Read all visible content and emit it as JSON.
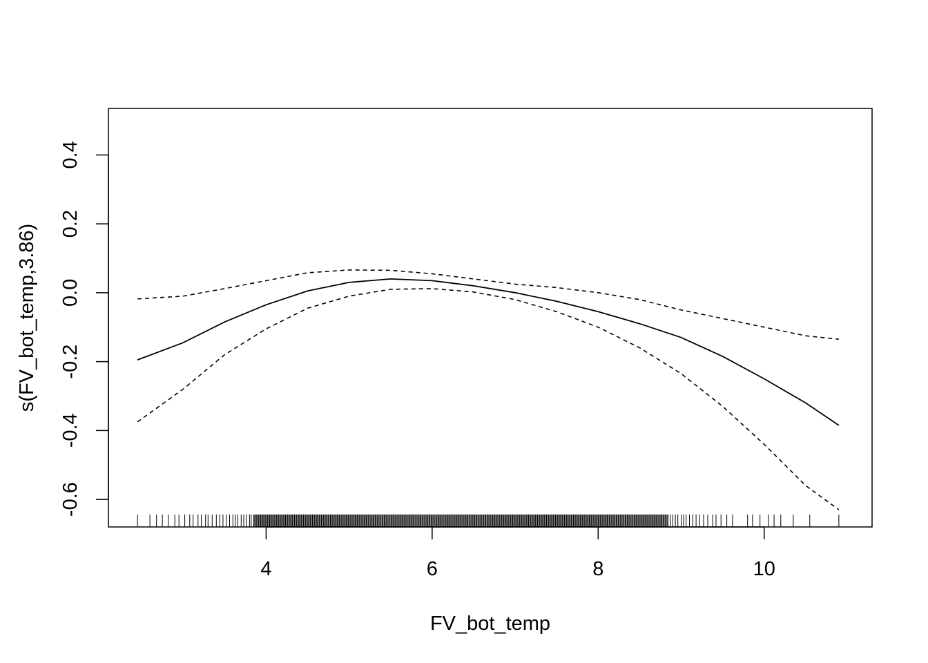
{
  "chart_data": {
    "type": "line",
    "title": "",
    "xlabel": "FV_bot_temp",
    "ylabel": "s(FV_bot_temp,3.86)",
    "xlim": [
      2.1,
      11.3
    ],
    "ylim": [
      -0.68,
      0.535
    ],
    "x_ticks": [
      4,
      6,
      8,
      10
    ],
    "x_tick_labels": [
      "4",
      "6",
      "8",
      "10"
    ],
    "y_ticks": [
      -0.6,
      -0.4,
      -0.2,
      0.0,
      0.2,
      0.4
    ],
    "y_tick_labels": [
      "-0.6",
      "-0.4",
      "-0.2",
      "0.0",
      "0.2",
      "0.4"
    ],
    "grid": false,
    "series": [
      {
        "style": "solid",
        "x": [
          2.45,
          3.0,
          3.5,
          4.0,
          4.5,
          5.0,
          5.5,
          6.0,
          6.5,
          7.0,
          7.5,
          8.0,
          8.5,
          9.0,
          9.5,
          10.0,
          10.5,
          10.9
        ],
        "y": [
          -0.195,
          -0.145,
          -0.085,
          -0.035,
          0.005,
          0.03,
          0.04,
          0.035,
          0.02,
          0.0,
          -0.025,
          -0.055,
          -0.09,
          -0.13,
          -0.185,
          -0.25,
          -0.32,
          -0.385
        ]
      },
      {
        "style": "dashed",
        "x": [
          2.45,
          3.0,
          3.5,
          4.0,
          4.5,
          5.0,
          5.5,
          6.0,
          6.5,
          7.0,
          7.5,
          8.0,
          8.5,
          9.0,
          9.5,
          10.0,
          10.5,
          10.9
        ],
        "y": [
          -0.018,
          -0.01,
          0.012,
          0.035,
          0.058,
          0.066,
          0.065,
          0.055,
          0.04,
          0.025,
          0.015,
          0.0,
          -0.02,
          -0.05,
          -0.075,
          -0.1,
          -0.125,
          -0.135
        ]
      },
      {
        "style": "dashed",
        "x": [
          2.45,
          3.0,
          3.5,
          4.0,
          4.5,
          5.0,
          5.5,
          6.0,
          6.5,
          7.0,
          7.5,
          8.0,
          8.5,
          9.0,
          9.5,
          10.0,
          10.5,
          10.9
        ],
        "y": [
          -0.375,
          -0.28,
          -0.18,
          -0.105,
          -0.045,
          -0.01,
          0.01,
          0.012,
          0.002,
          -0.02,
          -0.055,
          -0.1,
          -0.16,
          -0.235,
          -0.33,
          -0.44,
          -0.56,
          -0.63
        ]
      }
    ],
    "rug": {
      "dense_range": [
        3.85,
        8.85
      ],
      "sparse_x": [
        2.45,
        2.6,
        2.68,
        2.75,
        2.82,
        2.9,
        2.95,
        3.02,
        3.08,
        3.12,
        3.18,
        3.22,
        3.27,
        3.3,
        3.35,
        3.4,
        3.44,
        3.48,
        3.52,
        3.56,
        3.6,
        3.63,
        3.66,
        3.7,
        3.73,
        3.76,
        3.8,
        3.82,
        8.87,
        8.9,
        8.93,
        8.96,
        9.0,
        9.03,
        9.06,
        9.1,
        9.14,
        9.18,
        9.22,
        9.27,
        9.32,
        9.38,
        9.42,
        9.48,
        9.55,
        9.62,
        9.8,
        9.86,
        9.95,
        10.05,
        10.12,
        10.2,
        10.35,
        10.55,
        10.9
      ]
    }
  }
}
